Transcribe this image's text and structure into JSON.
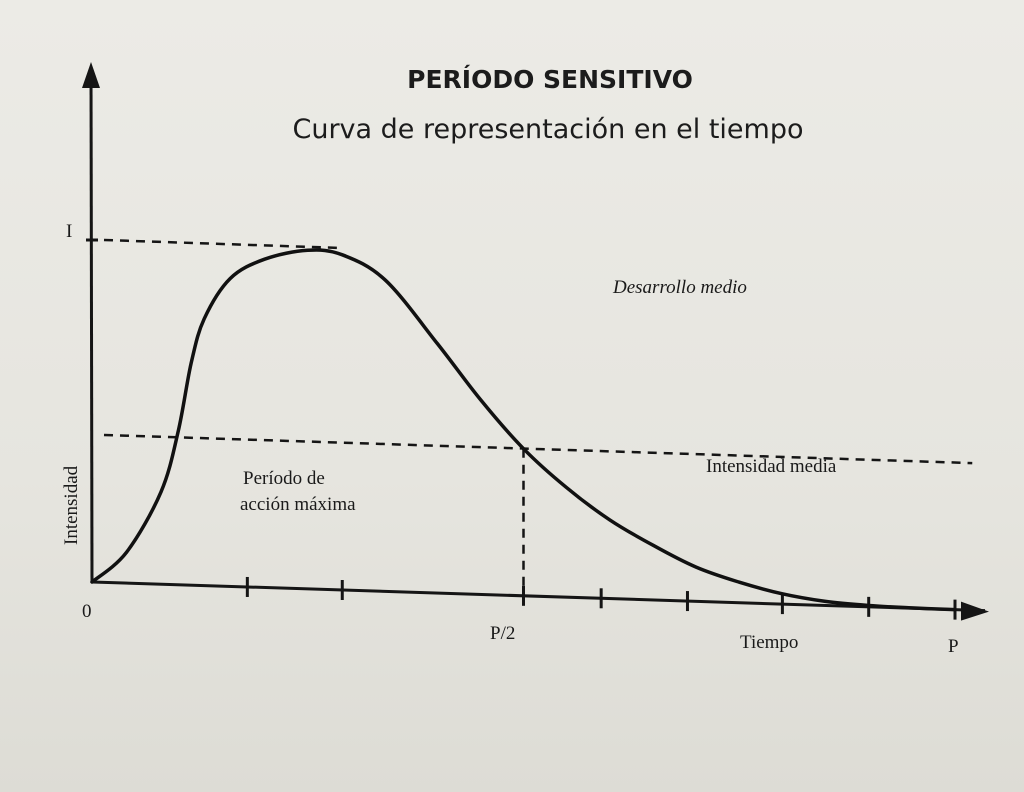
{
  "chart_data": {
    "type": "line",
    "title": "PERÍODO SENSITIVO",
    "subtitle": "Curva de representación en el tiempo",
    "ylabel": "Intensidad",
    "xlabel": "Tiempo",
    "origin_label": "0",
    "x_tick_labels": [
      {
        "x": 0.5,
        "label": "P/2"
      },
      {
        "x": 1.0,
        "label": "P"
      }
    ],
    "y_tick_labels": [
      {
        "y": 1.0,
        "label": "I"
      }
    ],
    "x_ticks": [
      0.18,
      0.29,
      0.5,
      0.59,
      0.69,
      0.8,
      0.9
    ],
    "xlim": [
      0,
      1
    ],
    "ylim": [
      0,
      1
    ],
    "series": [
      {
        "x": [
          0,
          0.04,
          0.08,
          0.1,
          0.115,
          0.13,
          0.16,
          0.2,
          0.25,
          0.29,
          0.34,
          0.4,
          0.45,
          0.5,
          0.55,
          0.6,
          0.65,
          0.7,
          0.75,
          0.8,
          0.85,
          0.9,
          0.95,
          1.0
        ],
        "y": [
          0,
          0.09,
          0.27,
          0.45,
          0.65,
          0.78,
          0.9,
          0.96,
          0.99,
          0.98,
          0.91,
          0.73,
          0.57,
          0.43,
          0.32,
          0.23,
          0.16,
          0.1,
          0.06,
          0.03,
          0.012,
          0.004,
          0.001,
          0
        ]
      }
    ],
    "reference_lines": [
      {
        "orientation": "horizontal",
        "y": 1.0,
        "x_to": 0.29,
        "style": "dashed"
      },
      {
        "orientation": "horizontal",
        "y": 0.43,
        "style": "dashed",
        "label": "Intensidad media"
      },
      {
        "orientation": "vertical",
        "x": 0.5,
        "y_to": 0.43,
        "style": "dashed"
      }
    ],
    "annotations": [
      {
        "text": "Desarrollo medio",
        "style": "italic"
      },
      {
        "text": "Período de acción máxima",
        "line1": "Período de",
        "line2": "acción máxima"
      },
      {
        "text": "Intensidad media"
      }
    ],
    "grid": false,
    "legend": "none"
  }
}
